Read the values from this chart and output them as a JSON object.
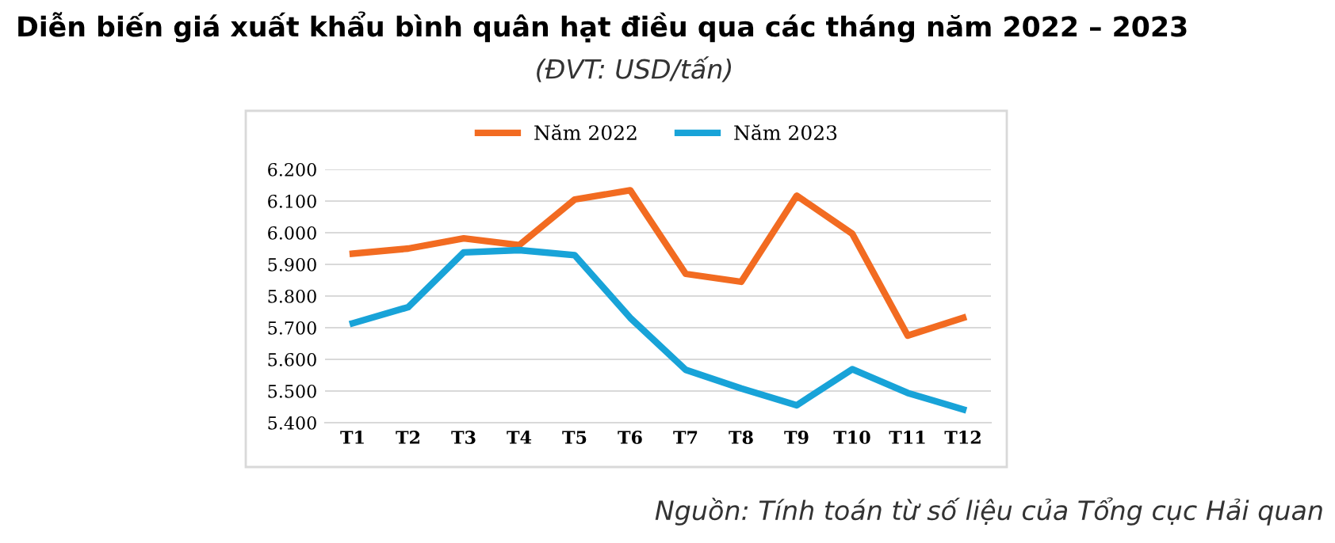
{
  "chart_data": {
    "type": "line",
    "title": "Diễn biến giá xuất khẩu bình quân hạt điều qua các tháng năm 2022 – 2023",
    "subtitle": "(ĐVT: USD/tấn)",
    "annotations": [
      "Nguồn: Tính toán từ số liệu của Tổng cục Hải quan"
    ],
    "categories": [
      "T1",
      "T2",
      "T3",
      "T4",
      "T5",
      "T6",
      "T7",
      "T8",
      "T9",
      "T10",
      "T11",
      "T12"
    ],
    "series": [
      {
        "name": "Năm 2022",
        "color": "#f26b21",
        "values": [
          5934,
          5950,
          5982,
          5961,
          6105,
          6134,
          5870,
          5845,
          6117,
          5997,
          5675,
          5731
        ]
      },
      {
        "name": "Năm 2023",
        "color": "#18a3d8",
        "values": [
          5714,
          5765,
          5938,
          5945,
          5929,
          5731,
          5567,
          5508,
          5455,
          5569,
          5494,
          5442
        ]
      }
    ],
    "ylim": [
      5400,
      6200
    ],
    "yticks": [
      {
        "value": 5400,
        "label": "5.400"
      },
      {
        "value": 5500,
        "label": "5.500"
      },
      {
        "value": 5600,
        "label": "5.600"
      },
      {
        "value": 5700,
        "label": "5.700"
      },
      {
        "value": 5800,
        "label": "5.800"
      },
      {
        "value": 5900,
        "label": "5.900"
      },
      {
        "value": 6000,
        "label": "6.000"
      },
      {
        "value": 6100,
        "label": "6.100"
      },
      {
        "value": 6200,
        "label": "6.200"
      }
    ],
    "grid": "y",
    "legend": "top",
    "marker": "none",
    "line_style": "solid"
  }
}
